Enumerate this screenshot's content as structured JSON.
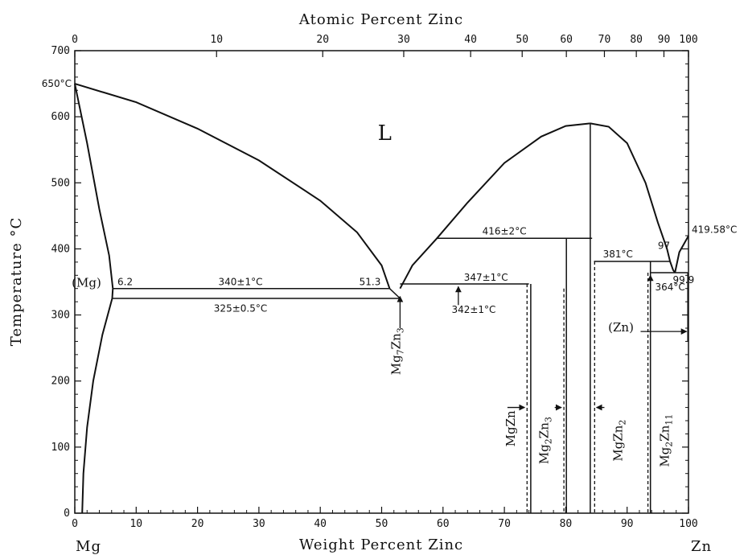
{
  "chart_data": {
    "type": "line",
    "title": "",
    "top_axis_label": "Atomic Percent Zinc",
    "xlabel": "Weight Percent Zinc",
    "ylabel": "Temperature °C",
    "xlim": [
      0,
      100
    ],
    "ylim": [
      0,
      700
    ],
    "x_ticks": [
      "0",
      "10",
      "20",
      "30",
      "40",
      "50",
      "60",
      "70",
      "80",
      "90",
      "100"
    ],
    "y_ticks": [
      "0",
      "100",
      "200",
      "300",
      "400",
      "500",
      "600",
      "700"
    ],
    "top_ticks": [
      {
        "label": "0",
        "wt": 0
      },
      {
        "label": "10",
        "wt": 23.1
      },
      {
        "label": "20",
        "wt": 40.4
      },
      {
        "label": "30",
        "wt": 53.6
      },
      {
        "label": "40",
        "wt": 64.5
      },
      {
        "label": "50",
        "wt": 72.9
      },
      {
        "label": "60",
        "wt": 80.1
      },
      {
        "label": "70",
        "wt": 86.3
      },
      {
        "label": "80",
        "wt": 91.5
      },
      {
        "label": "90",
        "wt": 96.0
      },
      {
        "label": "100",
        "wt": 100
      }
    ],
    "end_labels": {
      "left": "Mg",
      "right": "Zn"
    },
    "grid": false,
    "series": [
      {
        "kind": "curve",
        "points": [
          [
            0,
            650
          ],
          [
            10,
            622
          ],
          [
            20,
            582
          ],
          [
            30,
            534
          ],
          [
            40,
            473
          ],
          [
            46,
            425
          ],
          [
            50,
            375
          ],
          [
            51.3,
            340
          ]
        ]
      },
      {
        "kind": "curve",
        "points": [
          [
            0,
            650
          ],
          [
            2,
            560
          ],
          [
            4,
            460
          ],
          [
            5.6,
            390
          ],
          [
            6.2,
            340
          ]
        ]
      },
      {
        "kind": "curve",
        "points": [
          [
            6.2,
            340
          ],
          [
            6.1,
            325
          ]
        ]
      },
      {
        "kind": "curve",
        "points": [
          [
            6.1,
            325
          ],
          [
            4.5,
            270
          ],
          [
            3.0,
            200
          ],
          [
            2.0,
            130
          ],
          [
            1.4,
            60
          ],
          [
            1.2,
            0
          ]
        ]
      },
      {
        "kind": "curve",
        "points": [
          [
            53,
            340
          ],
          [
            55,
            375
          ],
          [
            59,
            416
          ],
          [
            64,
            470
          ],
          [
            70,
            530
          ],
          [
            76,
            570
          ],
          [
            80,
            586
          ],
          [
            84,
            590
          ]
        ]
      },
      {
        "kind": "curve",
        "points": [
          [
            84,
            590
          ],
          [
            87,
            585
          ],
          [
            90,
            560
          ],
          [
            93,
            500
          ],
          [
            95,
            440
          ],
          [
            96.5,
            400
          ],
          [
            97,
            381
          ]
        ]
      },
      {
        "kind": "curve",
        "points": [
          [
            97,
            381
          ],
          [
            97.5,
            368
          ],
          [
            97.8,
            364
          ]
        ]
      },
      {
        "kind": "curve",
        "points": [
          [
            97.8,
            364
          ],
          [
            98.5,
            395
          ],
          [
            100,
            419.58
          ]
        ]
      },
      {
        "kind": "line",
        "points": [
          [
            6.2,
            340
          ],
          [
            51.3,
            340
          ]
        ]
      },
      {
        "kind": "line",
        "points": [
          [
            6.1,
            325
          ],
          [
            53,
            325
          ]
        ]
      },
      {
        "kind": "line",
        "points": [
          [
            53,
            347
          ],
          [
            74,
            347
          ]
        ]
      },
      {
        "kind": "line",
        "points": [
          [
            59,
            416
          ],
          [
            84.3,
            416
          ]
        ]
      },
      {
        "kind": "line",
        "points": [
          [
            84.6,
            381
          ],
          [
            97,
            381
          ]
        ]
      },
      {
        "kind": "line",
        "points": [
          [
            93.9,
            364
          ],
          [
            99.9,
            364
          ]
        ]
      },
      {
        "kind": "line",
        "points": [
          [
            51.3,
            340
          ],
          [
            53,
            325
          ]
        ]
      },
      {
        "kind": "line",
        "points": [
          [
            84,
            590
          ],
          [
            84,
            0
          ]
        ]
      },
      {
        "kind": "line",
        "points": [
          [
            80.1,
            416
          ],
          [
            80.1,
            0
          ]
        ]
      },
      {
        "kind": "line",
        "points": [
          [
            74.3,
            347
          ],
          [
            74.3,
            0
          ]
        ]
      },
      {
        "kind": "line",
        "points": [
          [
            93.8,
            381
          ],
          [
            93.8,
            0
          ]
        ]
      },
      {
        "kind": "line",
        "points": [
          [
            99.9,
            364
          ],
          [
            99.9,
            260
          ]
        ]
      },
      {
        "kind": "dashed",
        "points": [
          [
            73.7,
            347
          ],
          [
            73.7,
            0
          ]
        ]
      },
      {
        "kind": "dashed",
        "points": [
          [
            79.7,
            340
          ],
          [
            79.7,
            0
          ]
        ]
      },
      {
        "kind": "dashed",
        "points": [
          [
            84.7,
            381
          ],
          [
            84.7,
            0
          ]
        ]
      },
      {
        "kind": "dashed",
        "points": [
          [
            93.4,
            364
          ],
          [
            93.4,
            0
          ]
        ]
      }
    ],
    "annotations": [
      {
        "text": "650°C",
        "x": 0,
        "y": 650,
        "anchor": "end",
        "dx": -4,
        "dy": 4
      },
      {
        "text": "L",
        "x": 50.5,
        "y": 565,
        "style": "big"
      },
      {
        "text": "416±2°C",
        "x": 70,
        "y": 422,
        "anchor": "middle"
      },
      {
        "text": "419.58°C",
        "x": 100,
        "y": 424,
        "anchor": "start",
        "dx": 4
      },
      {
        "text": "97",
        "x": 96,
        "y": 400,
        "anchor": "middle"
      },
      {
        "text": "381°C",
        "x": 88.5,
        "y": 387,
        "anchor": "middle"
      },
      {
        "text": "99.9",
        "x": 99.2,
        "y": 348,
        "anchor": "middle"
      },
      {
        "text": "340±1°C",
        "x": 27,
        "y": 345,
        "anchor": "middle"
      },
      {
        "text": "6.2",
        "x": 8.2,
        "y": 345,
        "anchor": "middle"
      },
      {
        "text": "51.3",
        "x": 48.1,
        "y": 345,
        "anchor": "middle"
      },
      {
        "text": "347±1°C",
        "x": 67,
        "y": 352,
        "anchor": "middle"
      },
      {
        "text": "325±0.5°C",
        "x": 27,
        "y": 305,
        "anchor": "middle"
      },
      {
        "text": "342±1°C",
        "x": 65,
        "y": 303,
        "anchor": "middle"
      },
      {
        "text": "364°C",
        "x": 97,
        "y": 337,
        "anchor": "middle"
      },
      {
        "text": "(Mg)",
        "x": -0.5,
        "y": 343,
        "anchor": "start",
        "style": "phase"
      },
      {
        "text": "(Zn)",
        "x": 89,
        "y": 275,
        "anchor": "middle",
        "style": "phase"
      }
    ],
    "compound_labels": [
      {
        "base": "Mg",
        "s1": "7",
        "mid": "Zn",
        "s2": "3",
        "x": 53,
        "y": 245
      },
      {
        "base": "Mg",
        "s1": "",
        "mid": "Zn",
        "s2": "",
        "x": 71.7,
        "y": 128
      },
      {
        "base": "Mg",
        "s1": "2",
        "mid": "Zn",
        "s2": "3",
        "x": 77.1,
        "y": 110
      },
      {
        "base": "Mg",
        "s1": "",
        "mid": "Zn",
        "s2": "2",
        "x": 89.2,
        "y": 110
      },
      {
        "base": "Mg",
        "s1": "2",
        "mid": "Zn",
        "s2": "11",
        "x": 96.8,
        "y": 110
      }
    ],
    "arrows": [
      {
        "from": [
          53,
          280
        ],
        "to": [
          53,
          328
        ],
        "kind": "up"
      },
      {
        "from": [
          62.5,
          315
        ],
        "to": [
          62.5,
          343
        ],
        "kind": "up"
      },
      {
        "from": [
          93.8,
          335
        ],
        "to": [
          93.8,
          360
        ],
        "kind": "up"
      },
      {
        "from": [
          70.5,
          160
        ],
        "to": [
          73.3,
          160
        ],
        "kind": "right"
      },
      {
        "from": [
          78.2,
          160
        ],
        "to": [
          79.3,
          160
        ],
        "kind": "right"
      },
      {
        "from": [
          86.3,
          160
        ],
        "to": [
          85.0,
          160
        ],
        "kind": "left"
      },
      {
        "from": [
          92.2,
          275
        ],
        "to": [
          99.7,
          275
        ],
        "kind": "right"
      }
    ]
  }
}
